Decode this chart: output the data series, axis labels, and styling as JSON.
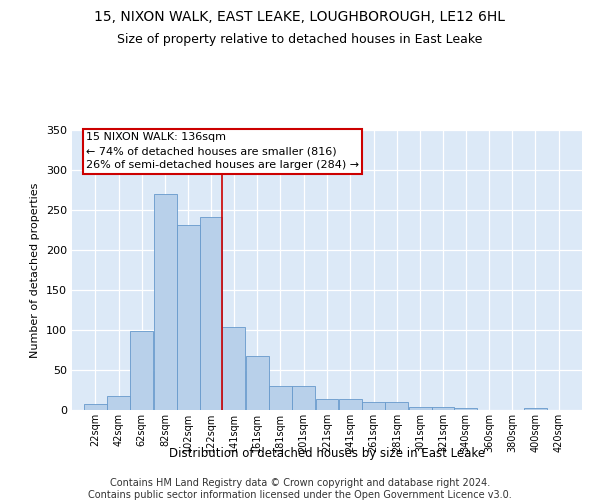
{
  "title1": "15, NIXON WALK, EAST LEAKE, LOUGHBOROUGH, LE12 6HL",
  "title2": "Size of property relative to detached houses in East Leake",
  "xlabel": "Distribution of detached houses by size in East Leake",
  "ylabel": "Number of detached properties",
  "footer1": "Contains HM Land Registry data © Crown copyright and database right 2024.",
  "footer2": "Contains public sector information licensed under the Open Government Licence v3.0.",
  "annotation_line1": "15 NIXON WALK: 136sqm",
  "annotation_line2": "← 74% of detached houses are smaller (816)",
  "annotation_line3": "26% of semi-detached houses are larger (284) →",
  "bar_left_edges": [
    22,
    42,
    62,
    82,
    102,
    122,
    141,
    161,
    181,
    201,
    221,
    241,
    261,
    281,
    301,
    321,
    340,
    360,
    380,
    400,
    420
  ],
  "bar_heights": [
    7,
    18,
    99,
    270,
    231,
    241,
    104,
    68,
    30,
    30,
    14,
    14,
    10,
    10,
    4,
    4,
    3,
    0,
    0,
    3,
    0
  ],
  "bar_color": "#b8d0ea",
  "bar_edge_color": "#6699cc",
  "vline_x": 141,
  "vline_color": "#cc0000",
  "ylim": [
    0,
    350
  ],
  "yticks": [
    0,
    50,
    100,
    150,
    200,
    250,
    300,
    350
  ],
  "bg_color": "#dce9f7",
  "grid_color": "#f0f4fc",
  "title_fontsize": 10,
  "subtitle_fontsize": 9,
  "annot_fontsize": 8.5,
  "footer_fontsize": 7
}
